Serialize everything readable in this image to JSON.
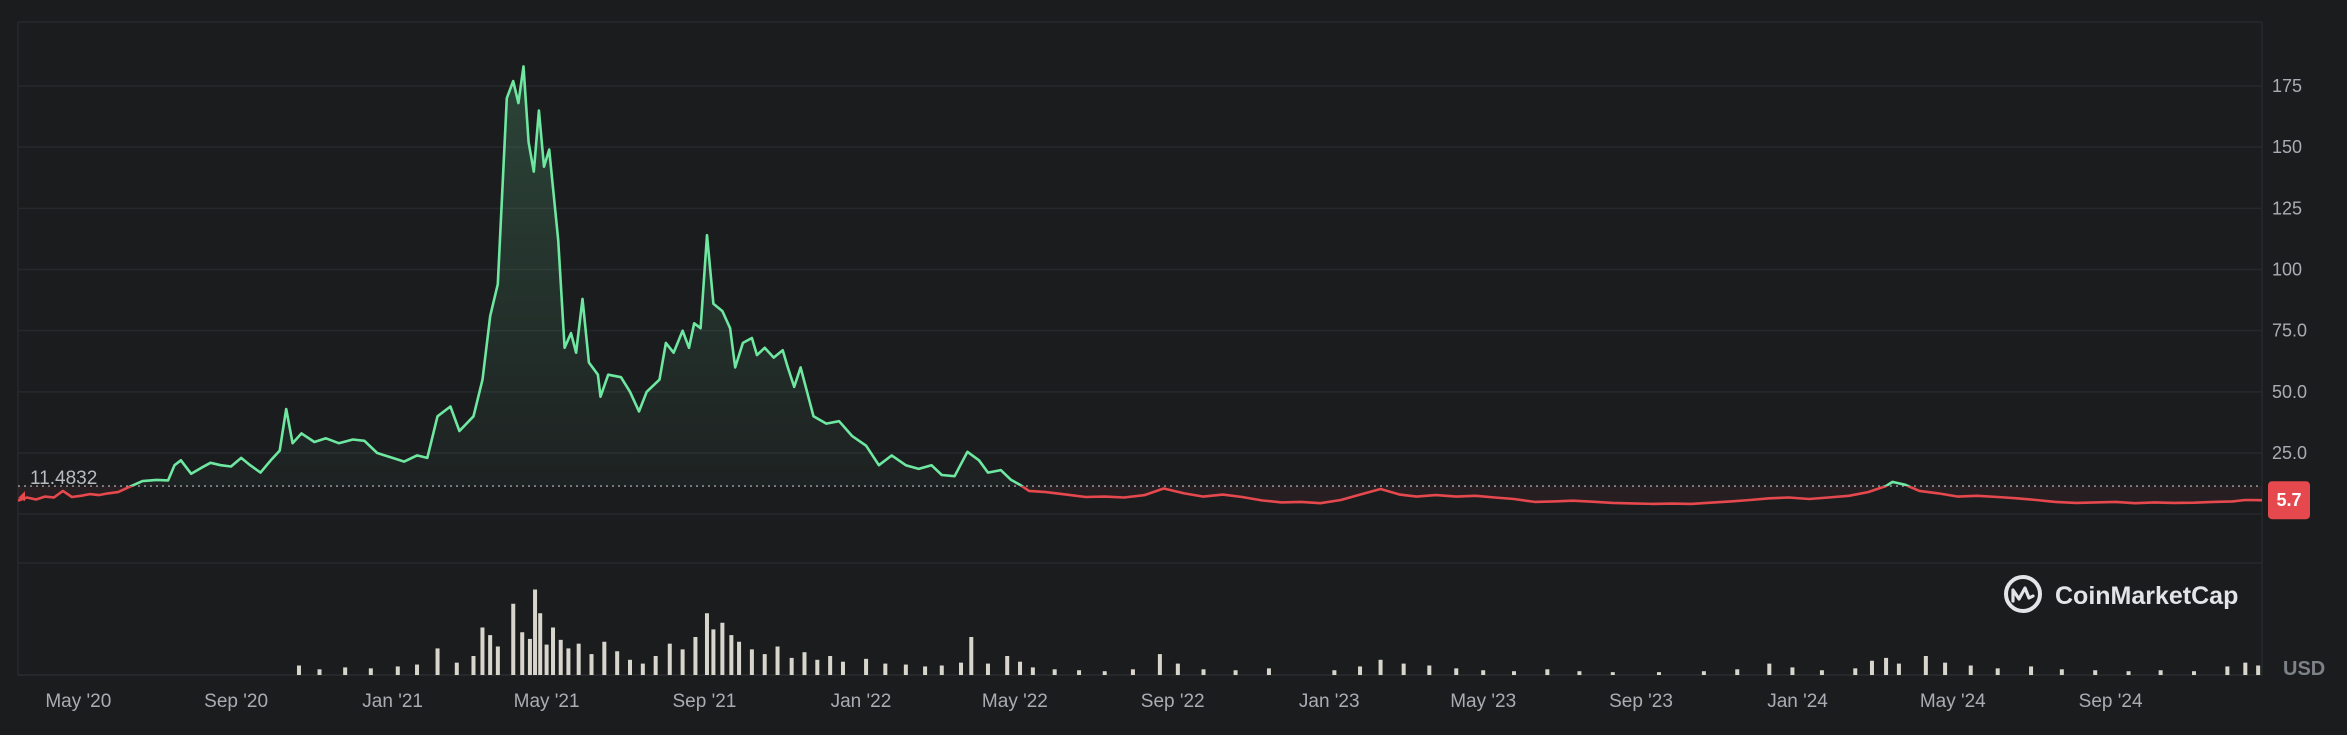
{
  "chart_data": {
    "type": "area",
    "ylim": [
      -30,
      195
    ],
    "y_ticks": [
      {
        "value": 25,
        "label": "25.0"
      },
      {
        "value": 50,
        "label": "50.0"
      },
      {
        "value": 75,
        "label": "75.0"
      },
      {
        "value": 100,
        "label": "100"
      },
      {
        "value": 125,
        "label": "125"
      },
      {
        "value": 150,
        "label": "150"
      },
      {
        "value": 175,
        "label": "175"
      }
    ],
    "x_range": [
      "2020-03-15",
      "2024-12-28"
    ],
    "x_ticks": [
      {
        "date": "2020-05-01",
        "label": "May '20"
      },
      {
        "date": "2020-09-01",
        "label": "Sep '20"
      },
      {
        "date": "2021-01-01",
        "label": "Jan '21"
      },
      {
        "date": "2021-05-01",
        "label": "May '21"
      },
      {
        "date": "2021-09-01",
        "label": "Sep '21"
      },
      {
        "date": "2022-01-01",
        "label": "Jan '22"
      },
      {
        "date": "2022-05-01",
        "label": "May '22"
      },
      {
        "date": "2022-09-01",
        "label": "Sep '22"
      },
      {
        "date": "2023-01-01",
        "label": "Jan '23"
      },
      {
        "date": "2023-05-01",
        "label": "May '23"
      },
      {
        "date": "2023-09-01",
        "label": "Sep '23"
      },
      {
        "date": "2024-01-01",
        "label": "Jan '24"
      },
      {
        "date": "2024-05-01",
        "label": "May '24"
      },
      {
        "date": "2024-09-01",
        "label": "Sep '24"
      }
    ],
    "baseline": {
      "value": 11.4832,
      "label": "11.4832"
    },
    "last_price": {
      "value": 5.7,
      "label": "5.7"
    },
    "currency": "USD",
    "colors": {
      "up": "#6ee7a0",
      "down": "#e5484d",
      "volume": "#d8d5cc",
      "grid": "#26282b"
    },
    "series": [
      {
        "values": [
          [
            "2020-03-15",
            5.5
          ],
          [
            "2020-03-22",
            6.8
          ],
          [
            "2020-03-29",
            6.0
          ],
          [
            "2020-04-05",
            7.2
          ],
          [
            "2020-04-12",
            6.8
          ],
          [
            "2020-04-19",
            9.5
          ],
          [
            "2020-04-26",
            7.0
          ],
          [
            "2020-05-03",
            7.5
          ],
          [
            "2020-05-10",
            8.2
          ],
          [
            "2020-05-17",
            7.8
          ],
          [
            "2020-05-24",
            8.5
          ],
          [
            "2020-06-01",
            9.0
          ],
          [
            "2020-06-10",
            11.2
          ],
          [
            "2020-06-20",
            13.5
          ],
          [
            "2020-07-01",
            14.0
          ],
          [
            "2020-07-10",
            13.8
          ],
          [
            "2020-07-15",
            20.0
          ],
          [
            "2020-07-20",
            22.0
          ],
          [
            "2020-07-28",
            16.5
          ],
          [
            "2020-08-05",
            19.0
          ],
          [
            "2020-08-12",
            21.0
          ],
          [
            "2020-08-20",
            20.0
          ],
          [
            "2020-08-28",
            19.5
          ],
          [
            "2020-09-05",
            23.0
          ],
          [
            "2020-09-12",
            20.0
          ],
          [
            "2020-09-20",
            17.0
          ],
          [
            "2020-09-28",
            22.0
          ],
          [
            "2020-10-05",
            26.0
          ],
          [
            "2020-10-10",
            43.0
          ],
          [
            "2020-10-15",
            29.0
          ],
          [
            "2020-10-22",
            33.0
          ],
          [
            "2020-11-01",
            29.5
          ],
          [
            "2020-11-10",
            31.0
          ],
          [
            "2020-11-20",
            29.0
          ],
          [
            "2020-12-01",
            30.5
          ],
          [
            "2020-12-10",
            30.0
          ],
          [
            "2020-12-20",
            25.0
          ],
          [
            "2021-01-01",
            23.0
          ],
          [
            "2021-01-10",
            21.5
          ],
          [
            "2021-01-20",
            24.0
          ],
          [
            "2021-01-28",
            23.0
          ],
          [
            "2021-02-05",
            40.0
          ],
          [
            "2021-02-15",
            44.0
          ],
          [
            "2021-02-22",
            34.0
          ],
          [
            "2021-03-05",
            40.0
          ],
          [
            "2021-03-12",
            55.0
          ],
          [
            "2021-03-18",
            81.0
          ],
          [
            "2021-03-24",
            94.0
          ],
          [
            "2021-03-31",
            170.0
          ],
          [
            "2021-04-05",
            177.0
          ],
          [
            "2021-04-09",
            168.0
          ],
          [
            "2021-04-13",
            183.0
          ],
          [
            "2021-04-17",
            152.0
          ],
          [
            "2021-04-21",
            140.0
          ],
          [
            "2021-04-25",
            165.0
          ],
          [
            "2021-04-29",
            142.0
          ],
          [
            "2021-05-03",
            149.0
          ],
          [
            "2021-05-10",
            112.0
          ],
          [
            "2021-05-15",
            68.0
          ],
          [
            "2021-05-20",
            74.0
          ],
          [
            "2021-05-24",
            66.0
          ],
          [
            "2021-05-29",
            88.0
          ],
          [
            "2021-06-03",
            62.0
          ],
          [
            "2021-06-10",
            57.0
          ],
          [
            "2021-06-12",
            48.0
          ],
          [
            "2021-06-18",
            57.0
          ],
          [
            "2021-06-28",
            56.0
          ],
          [
            "2021-07-05",
            50.0
          ],
          [
            "2021-07-12",
            42.0
          ],
          [
            "2021-07-18",
            50.0
          ],
          [
            "2021-07-28",
            55.0
          ],
          [
            "2021-08-02",
            70.0
          ],
          [
            "2021-08-08",
            66.0
          ],
          [
            "2021-08-15",
            75.0
          ],
          [
            "2021-08-20",
            68.0
          ],
          [
            "2021-08-24",
            78.0
          ],
          [
            "2021-08-29",
            76.0
          ],
          [
            "2021-09-03",
            114.0
          ],
          [
            "2021-09-08",
            86.0
          ],
          [
            "2021-09-15",
            83.0
          ],
          [
            "2021-09-21",
            76.0
          ],
          [
            "2021-09-25",
            60.0
          ],
          [
            "2021-10-01",
            70.0
          ],
          [
            "2021-10-08",
            72.0
          ],
          [
            "2021-10-12",
            65.0
          ],
          [
            "2021-10-18",
            68.0
          ],
          [
            "2021-10-25",
            64.0
          ],
          [
            "2021-11-01",
            67.0
          ],
          [
            "2021-11-05",
            60.0
          ],
          [
            "2021-11-10",
            52.0
          ],
          [
            "2021-11-15",
            60.0
          ],
          [
            "2021-11-25",
            40.0
          ],
          [
            "2021-12-05",
            37.0
          ],
          [
            "2021-12-15",
            38.0
          ],
          [
            "2021-12-25",
            32.0
          ],
          [
            "2022-01-05",
            28.0
          ],
          [
            "2022-01-15",
            20.0
          ],
          [
            "2022-01-25",
            24.0
          ],
          [
            "2022-02-05",
            20.0
          ],
          [
            "2022-02-15",
            18.5
          ],
          [
            "2022-02-25",
            20.0
          ],
          [
            "2022-03-05",
            16.0
          ],
          [
            "2022-03-15",
            15.5
          ],
          [
            "2022-03-25",
            25.5
          ],
          [
            "2022-04-03",
            22.0
          ],
          [
            "2022-04-10",
            17.0
          ],
          [
            "2022-04-20",
            18.0
          ],
          [
            "2022-04-28",
            14.0
          ],
          [
            "2022-05-05",
            12.0
          ],
          [
            "2022-05-12",
            9.5
          ],
          [
            "2022-05-25",
            9.0
          ],
          [
            "2022-06-10",
            8.0
          ],
          [
            "2022-06-25",
            7.0
          ],
          [
            "2022-07-10",
            7.2
          ],
          [
            "2022-07-25",
            6.8
          ],
          [
            "2022-08-10",
            7.8
          ],
          [
            "2022-08-25",
            10.5
          ],
          [
            "2022-09-10",
            8.5
          ],
          [
            "2022-09-25",
            7.2
          ],
          [
            "2022-10-10",
            8.0
          ],
          [
            "2022-10-25",
            7.0
          ],
          [
            "2022-11-10",
            5.6
          ],
          [
            "2022-11-25",
            4.8
          ],
          [
            "2022-12-10",
            5.0
          ],
          [
            "2022-12-25",
            4.5
          ],
          [
            "2023-01-10",
            5.8
          ],
          [
            "2023-01-25",
            8.0
          ],
          [
            "2023-02-10",
            10.3
          ],
          [
            "2023-02-25",
            8.0
          ],
          [
            "2023-03-10",
            7.2
          ],
          [
            "2023-03-25",
            7.8
          ],
          [
            "2023-04-10",
            7.2
          ],
          [
            "2023-04-25",
            7.5
          ],
          [
            "2023-05-10",
            6.8
          ],
          [
            "2023-05-25",
            6.2
          ],
          [
            "2023-06-10",
            5.0
          ],
          [
            "2023-06-25",
            5.2
          ],
          [
            "2023-07-10",
            5.5
          ],
          [
            "2023-07-25",
            5.1
          ],
          [
            "2023-08-10",
            4.6
          ],
          [
            "2023-08-25",
            4.4
          ],
          [
            "2023-09-10",
            4.2
          ],
          [
            "2023-09-25",
            4.3
          ],
          [
            "2023-10-10",
            4.2
          ],
          [
            "2023-10-25",
            4.7
          ],
          [
            "2023-11-10",
            5.2
          ],
          [
            "2023-11-25",
            5.8
          ],
          [
            "2023-12-10",
            6.5
          ],
          [
            "2023-12-25",
            6.8
          ],
          [
            "2024-01-10",
            6.2
          ],
          [
            "2024-01-25",
            6.8
          ],
          [
            "2024-02-10",
            7.5
          ],
          [
            "2024-02-25",
            9.0
          ],
          [
            "2024-03-10",
            11.5
          ],
          [
            "2024-03-15",
            13.2
          ],
          [
            "2024-03-25",
            12.0
          ],
          [
            "2024-04-05",
            9.5
          ],
          [
            "2024-04-20",
            8.5
          ],
          [
            "2024-05-05",
            7.2
          ],
          [
            "2024-05-20",
            7.5
          ],
          [
            "2024-06-05",
            7.0
          ],
          [
            "2024-06-20",
            6.5
          ],
          [
            "2024-07-05",
            5.8
          ],
          [
            "2024-07-20",
            5.0
          ],
          [
            "2024-08-05",
            4.6
          ],
          [
            "2024-08-20",
            4.8
          ],
          [
            "2024-09-05",
            5.0
          ],
          [
            "2024-09-20",
            4.5
          ],
          [
            "2024-10-05",
            4.8
          ],
          [
            "2024-10-20",
            4.6
          ],
          [
            "2024-11-05",
            4.7
          ],
          [
            "2024-11-20",
            5.0
          ],
          [
            "2024-12-05",
            5.2
          ],
          [
            "2024-12-15",
            5.8
          ],
          [
            "2024-12-28",
            5.7
          ]
        ]
      }
    ],
    "volume": [
      [
        "2020-10-20",
        0.1
      ],
      [
        "2020-11-05",
        0.06
      ],
      [
        "2020-11-25",
        0.08
      ],
      [
        "2020-12-15",
        0.07
      ],
      [
        "2021-01-05",
        0.09
      ],
      [
        "2021-01-20",
        0.11
      ],
      [
        "2021-02-05",
        0.28
      ],
      [
        "2021-02-20",
        0.13
      ],
      [
        "2021-03-05",
        0.2
      ],
      [
        "2021-03-12",
        0.5
      ],
      [
        "2021-03-18",
        0.42
      ],
      [
        "2021-03-24",
        0.3
      ],
      [
        "2021-04-05",
        0.75
      ],
      [
        "2021-04-12",
        0.45
      ],
      [
        "2021-04-18",
        0.38
      ],
      [
        "2021-04-22",
        0.9
      ],
      [
        "2021-04-26",
        0.65
      ],
      [
        "2021-05-01",
        0.32
      ],
      [
        "2021-05-06",
        0.5
      ],
      [
        "2021-05-12",
        0.37
      ],
      [
        "2021-05-18",
        0.28
      ],
      [
        "2021-05-26",
        0.33
      ],
      [
        "2021-06-05",
        0.22
      ],
      [
        "2021-06-15",
        0.35
      ],
      [
        "2021-06-25",
        0.25
      ],
      [
        "2021-07-05",
        0.16
      ],
      [
        "2021-07-15",
        0.12
      ],
      [
        "2021-07-25",
        0.2
      ],
      [
        "2021-08-05",
        0.33
      ],
      [
        "2021-08-15",
        0.27
      ],
      [
        "2021-08-25",
        0.4
      ],
      [
        "2021-09-03",
        0.65
      ],
      [
        "2021-09-08",
        0.48
      ],
      [
        "2021-09-15",
        0.55
      ],
      [
        "2021-09-22",
        0.42
      ],
      [
        "2021-09-28",
        0.35
      ],
      [
        "2021-10-08",
        0.27
      ],
      [
        "2021-10-18",
        0.22
      ],
      [
        "2021-10-28",
        0.3
      ],
      [
        "2021-11-08",
        0.18
      ],
      [
        "2021-11-18",
        0.24
      ],
      [
        "2021-11-28",
        0.16
      ],
      [
        "2021-12-08",
        0.2
      ],
      [
        "2021-12-18",
        0.14
      ],
      [
        "2022-01-05",
        0.17
      ],
      [
        "2022-01-20",
        0.12
      ],
      [
        "2022-02-05",
        0.11
      ],
      [
        "2022-02-20",
        0.09
      ],
      [
        "2022-03-05",
        0.1
      ],
      [
        "2022-03-20",
        0.13
      ],
      [
        "2022-03-28",
        0.4
      ],
      [
        "2022-04-10",
        0.12
      ],
      [
        "2022-04-25",
        0.2
      ],
      [
        "2022-05-05",
        0.14
      ],
      [
        "2022-05-15",
        0.08
      ],
      [
        "2022-06-01",
        0.06
      ],
      [
        "2022-06-20",
        0.05
      ],
      [
        "2022-07-10",
        0.04
      ],
      [
        "2022-08-01",
        0.06
      ],
      [
        "2022-08-22",
        0.22
      ],
      [
        "2022-09-05",
        0.12
      ],
      [
        "2022-09-25",
        0.06
      ],
      [
        "2022-10-20",
        0.05
      ],
      [
        "2022-11-15",
        0.07
      ],
      [
        "2023-01-05",
        0.05
      ],
      [
        "2023-01-25",
        0.09
      ],
      [
        "2023-02-10",
        0.16
      ],
      [
        "2023-02-28",
        0.12
      ],
      [
        "2023-03-20",
        0.1
      ],
      [
        "2023-04-10",
        0.07
      ],
      [
        "2023-05-01",
        0.05
      ],
      [
        "2023-05-25",
        0.04
      ],
      [
        "2023-06-20",
        0.06
      ],
      [
        "2023-07-15",
        0.04
      ],
      [
        "2023-08-10",
        0.03
      ],
      [
        "2023-09-15",
        0.03
      ],
      [
        "2023-10-20",
        0.04
      ],
      [
        "2023-11-15",
        0.06
      ],
      [
        "2023-12-10",
        0.12
      ],
      [
        "2023-12-28",
        0.08
      ],
      [
        "2024-01-20",
        0.05
      ],
      [
        "2024-02-15",
        0.07
      ],
      [
        "2024-02-28",
        0.15
      ],
      [
        "2024-03-10",
        0.18
      ],
      [
        "2024-03-20",
        0.12
      ],
      [
        "2024-04-10",
        0.2
      ],
      [
        "2024-04-25",
        0.13
      ],
      [
        "2024-05-15",
        0.1
      ],
      [
        "2024-06-05",
        0.07
      ],
      [
        "2024-07-01",
        0.09
      ],
      [
        "2024-07-25",
        0.06
      ],
      [
        "2024-08-20",
        0.05
      ],
      [
        "2024-09-15",
        0.04
      ],
      [
        "2024-10-10",
        0.05
      ],
      [
        "2024-11-05",
        0.04
      ],
      [
        "2024-12-01",
        0.09
      ],
      [
        "2024-12-15",
        0.13
      ],
      [
        "2024-12-25",
        0.1
      ]
    ]
  },
  "brand": {
    "name": "CoinMarketCap",
    "logo_icon": "coinmarketcap-logo-icon"
  }
}
